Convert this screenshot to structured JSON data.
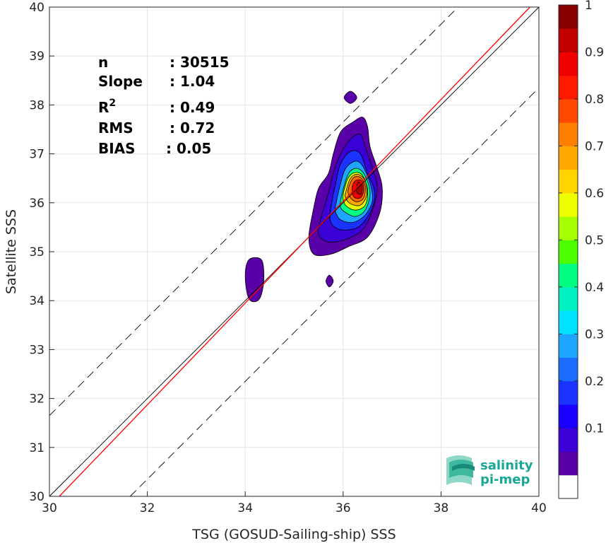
{
  "chart_data": {
    "type": "contour",
    "xlabel": "TSG (GOSUD-Sailing-ship) SSS",
    "ylabel": "Satellite SSS",
    "xlim": [
      30,
      40
    ],
    "ylim": [
      30,
      40
    ],
    "xticks": [
      "30",
      "32",
      "34",
      "36",
      "38",
      "40"
    ],
    "yticks": [
      "30",
      "31",
      "32",
      "33",
      "34",
      "35",
      "36",
      "37",
      "38",
      "39",
      "40"
    ],
    "grid": true,
    "stats": [
      {
        "label": "n",
        "sep": ": ",
        "value": "30515"
      },
      {
        "label": "Slope",
        "sep": ": ",
        "value": "1.04"
      },
      {
        "label": "R",
        "sup": "2",
        "sep": ": ",
        "value": "0.49"
      },
      {
        "label": "RMS",
        "sep": ": ",
        "value": "0.72"
      },
      {
        "label": "BIAS",
        "sep": ": ",
        "value": "0.05"
      }
    ],
    "lines": {
      "one_to_one": {
        "points": [
          [
            30,
            30
          ],
          [
            40,
            40
          ]
        ],
        "color": "#000000"
      },
      "regression": {
        "slope": 1.04,
        "intercept": -1.41,
        "color": "#ff0000"
      },
      "upper_bound": {
        "offset": 1.65,
        "style": "dashed"
      },
      "lower_bound": {
        "offset": -1.65,
        "style": "dashed"
      }
    },
    "contours": [
      {
        "level": 0.05,
        "color": "#5a00a8",
        "ring": [
          [
            35.4,
            35.9
          ],
          [
            35.5,
            36.3
          ],
          [
            35.7,
            36.6
          ],
          [
            35.8,
            37.0
          ],
          [
            35.95,
            37.45
          ],
          [
            36.2,
            37.65
          ],
          [
            36.4,
            37.75
          ],
          [
            36.5,
            37.55
          ],
          [
            36.55,
            37.15
          ],
          [
            36.7,
            36.7
          ],
          [
            36.8,
            36.3
          ],
          [
            36.75,
            35.8
          ],
          [
            36.5,
            35.3
          ],
          [
            36.1,
            35.1
          ],
          [
            35.75,
            34.95
          ],
          [
            35.4,
            34.95
          ],
          [
            35.3,
            35.3
          ]
        ]
      },
      {
        "level": 0.05,
        "color": "#5a00a8",
        "ring": [
          [
            34.0,
            34.5
          ],
          [
            34.05,
            34.8
          ],
          [
            34.2,
            34.88
          ],
          [
            34.35,
            34.8
          ],
          [
            34.38,
            34.4
          ],
          [
            34.3,
            34.05
          ],
          [
            34.15,
            33.98
          ],
          [
            34.05,
            34.1
          ]
        ]
      },
      {
        "level": 0.05,
        "color": "#5a00a8",
        "ring": [
          [
            36.02,
            38.15
          ],
          [
            36.15,
            38.28
          ],
          [
            36.28,
            38.15
          ],
          [
            36.15,
            38.03
          ]
        ]
      },
      {
        "level": 0.05,
        "color": "#5a00a8",
        "ring": [
          [
            35.65,
            34.4
          ],
          [
            35.72,
            34.52
          ],
          [
            35.8,
            34.4
          ],
          [
            35.72,
            34.28
          ]
        ]
      },
      {
        "level": 0.1,
        "color": "#3b00d6",
        "ring": [
          [
            35.55,
            35.7
          ],
          [
            35.7,
            36.2
          ],
          [
            35.8,
            36.6
          ],
          [
            35.95,
            37.0
          ],
          [
            36.15,
            37.3
          ],
          [
            36.35,
            37.4
          ],
          [
            36.45,
            37.15
          ],
          [
            36.6,
            36.7
          ],
          [
            36.7,
            36.3
          ],
          [
            36.6,
            35.85
          ],
          [
            36.4,
            35.45
          ],
          [
            36.05,
            35.25
          ],
          [
            35.7,
            35.2
          ],
          [
            35.5,
            35.35
          ]
        ]
      },
      {
        "level": 0.2,
        "color": "#1a33ff",
        "ring": [
          [
            35.75,
            35.9
          ],
          [
            35.85,
            36.4
          ],
          [
            35.95,
            36.8
          ],
          [
            36.15,
            37.05
          ],
          [
            36.35,
            37.0
          ],
          [
            36.5,
            36.6
          ],
          [
            36.65,
            36.2
          ],
          [
            36.55,
            35.8
          ],
          [
            36.3,
            35.5
          ],
          [
            35.95,
            35.45
          ],
          [
            35.75,
            35.6
          ]
        ]
      },
      {
        "level": 0.3,
        "color": "#1ea5ff",
        "ring": [
          [
            35.85,
            35.95
          ],
          [
            35.95,
            36.4
          ],
          [
            36.05,
            36.7
          ],
          [
            36.25,
            36.85
          ],
          [
            36.4,
            36.75
          ],
          [
            36.55,
            36.4
          ],
          [
            36.6,
            36.05
          ],
          [
            36.45,
            35.75
          ],
          [
            36.2,
            35.6
          ],
          [
            35.95,
            35.65
          ],
          [
            35.85,
            35.8
          ]
        ]
      },
      {
        "level": 0.5,
        "color": "#00ff80",
        "ring": [
          [
            35.95,
            36.05
          ],
          [
            36.05,
            36.45
          ],
          [
            36.15,
            36.65
          ],
          [
            36.3,
            36.7
          ],
          [
            36.45,
            36.55
          ],
          [
            36.55,
            36.2
          ],
          [
            36.45,
            35.85
          ],
          [
            36.25,
            35.72
          ],
          [
            36.05,
            35.8
          ],
          [
            35.95,
            35.9
          ]
        ]
      },
      {
        "level": 0.6,
        "color": "#e6ff00",
        "ring": [
          [
            36.0,
            36.15
          ],
          [
            36.1,
            36.5
          ],
          [
            36.25,
            36.62
          ],
          [
            36.4,
            36.55
          ],
          [
            36.5,
            36.25
          ],
          [
            36.45,
            35.95
          ],
          [
            36.25,
            35.85
          ],
          [
            36.05,
            35.95
          ]
        ]
      },
      {
        "level": 0.7,
        "color": "#ffaa00",
        "ring": [
          [
            36.05,
            36.2
          ],
          [
            36.15,
            36.5
          ],
          [
            36.3,
            36.58
          ],
          [
            36.45,
            36.45
          ],
          [
            36.48,
            36.15
          ],
          [
            36.35,
            35.95
          ],
          [
            36.15,
            35.98
          ],
          [
            36.05,
            36.1
          ]
        ]
      },
      {
        "level": 0.8,
        "color": "#ff6a00",
        "ring": [
          [
            36.1,
            36.25
          ],
          [
            36.2,
            36.5
          ],
          [
            36.35,
            36.52
          ],
          [
            36.45,
            36.35
          ],
          [
            36.42,
            36.1
          ],
          [
            36.28,
            36.02
          ],
          [
            36.15,
            36.1
          ]
        ]
      },
      {
        "level": 0.9,
        "color": "#ee0000",
        "ring": [
          [
            36.18,
            36.3
          ],
          [
            36.25,
            36.45
          ],
          [
            36.38,
            36.45
          ],
          [
            36.42,
            36.25
          ],
          [
            36.35,
            36.1
          ],
          [
            36.22,
            36.12
          ]
        ]
      },
      {
        "level": 1.0,
        "color": "#aa0000",
        "ring": [
          [
            36.28,
            36.22
          ],
          [
            36.3,
            36.42
          ],
          [
            36.38,
            36.35
          ],
          [
            36.37,
            36.18
          ]
        ]
      }
    ],
    "colorbar": {
      "ticks": [
        "0.1",
        "0.2",
        "0.3",
        "0.4",
        "0.5",
        "0.6",
        "0.7",
        "0.8",
        "0.9",
        "1"
      ],
      "tick_values": [
        0.1,
        0.2,
        0.3,
        0.4,
        0.5,
        0.6,
        0.7,
        0.8,
        0.9,
        1.0
      ],
      "colors": [
        "#ffffff",
        "#5a00a8",
        "#3b00d6",
        "#1a00ff",
        "#1a33ff",
        "#1a6cff",
        "#1ea5ff",
        "#00e0ff",
        "#00f0c0",
        "#00ff80",
        "#4bff00",
        "#a6ff00",
        "#f0ff00",
        "#ffd400",
        "#ffaa00",
        "#ff7f00",
        "#ff4a00",
        "#ff1a00",
        "#ee0000",
        "#c20000",
        "#8a0000"
      ]
    }
  },
  "logo": {
    "line1": "salinity",
    "line2": "pi-mep"
  }
}
